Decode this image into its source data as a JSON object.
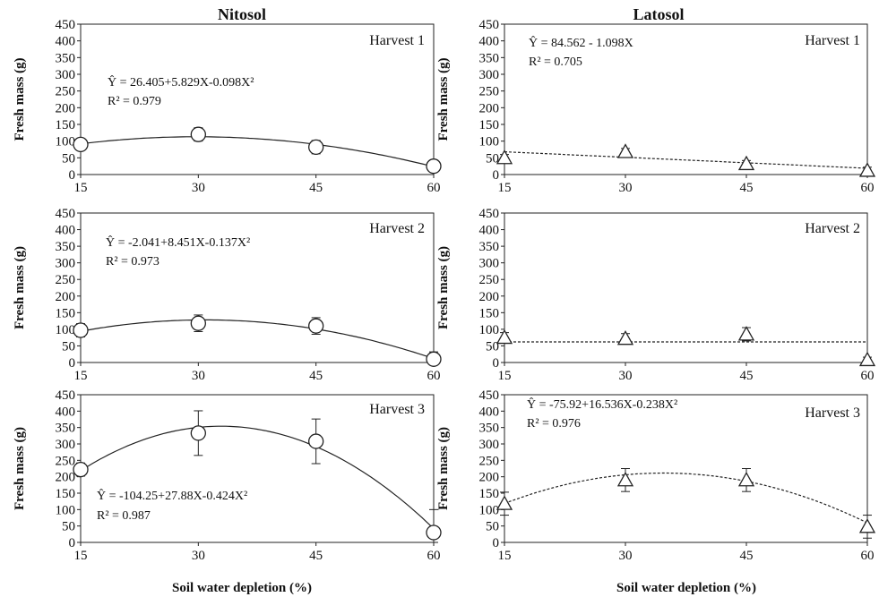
{
  "column_titles": [
    "Nitosol",
    "Latosol"
  ],
  "ylabel": "Fresh mass (g)",
  "xlabel": "Soil water depletion  (%)",
  "chart_data": [
    {
      "type": "scatter",
      "soil": "Nitosol",
      "harvest_label": "Harvest 1",
      "x": [
        15,
        30,
        45,
        60
      ],
      "y": [
        90,
        120,
        82,
        25
      ],
      "err": [
        12,
        20,
        20,
        10
      ],
      "marker": "circle",
      "line_style": "solid",
      "equation": "Ŷ = 26.405+5.829X-0.098X²",
      "r2": "R² =  0.979",
      "fit": [
        26.405,
        5.829,
        -0.098
      ],
      "ylim": [
        0,
        450
      ],
      "yticks": [
        0,
        50,
        100,
        150,
        200,
        250,
        300,
        350,
        400,
        450
      ],
      "xticks": [
        15,
        30,
        45,
        60
      ]
    },
    {
      "type": "scatter",
      "soil": "Latosol",
      "harvest_label": "Harvest 1",
      "x": [
        15,
        30,
        45,
        60
      ],
      "y": [
        50,
        68,
        32,
        12
      ],
      "err": [
        10,
        10,
        10,
        10
      ],
      "marker": "triangle",
      "line_style": "dashed",
      "equation": "Ŷ = 84.562  - 1.098X",
      "r2": "R² =  0.705",
      "fit": [
        84.562,
        -1.098,
        0
      ],
      "ylim": [
        0,
        450
      ],
      "yticks": [
        0,
        50,
        100,
        150,
        200,
        250,
        300,
        350,
        400,
        450
      ],
      "xticks": [
        15,
        30,
        45,
        60
      ]
    },
    {
      "type": "scatter",
      "soil": "Nitosol",
      "harvest_label": "Harvest 2",
      "x": [
        15,
        30,
        45,
        60
      ],
      "y": [
        97,
        118,
        110,
        10
      ],
      "err": [
        20,
        25,
        25,
        22
      ],
      "marker": "circle",
      "line_style": "solid",
      "equation": "Ŷ = -2.041+8.451X-0.137X²",
      "r2": "R² =  0.973",
      "fit": [
        -2.041,
        8.451,
        -0.137
      ],
      "ylim": [
        0,
        450
      ],
      "yticks": [
        0,
        50,
        100,
        150,
        200,
        250,
        300,
        350,
        400,
        450
      ],
      "xticks": [
        15,
        30,
        45,
        60
      ]
    },
    {
      "type": "scatter",
      "soil": "Latosol",
      "harvest_label": "Harvest 2",
      "x": [
        15,
        30,
        45,
        60
      ],
      "y": [
        75,
        72,
        85,
        8
      ],
      "err": [
        15,
        15,
        20,
        8
      ],
      "marker": "triangle",
      "line_style": "dashed",
      "equation": "",
      "r2": "",
      "fit": [
        62,
        0,
        0
      ],
      "ylim": [
        0,
        450
      ],
      "yticks": [
        0,
        50,
        100,
        150,
        200,
        250,
        300,
        350,
        400,
        450
      ],
      "xticks": [
        15,
        30,
        45,
        60
      ]
    },
    {
      "type": "scatter",
      "soil": "Nitosol",
      "harvest_label": "Harvest 3",
      "x": [
        15,
        30,
        45,
        60
      ],
      "y": [
        222,
        333,
        308,
        30
      ],
      "err": [
        20,
        68,
        68,
        70
      ],
      "marker": "circle",
      "line_style": "solid",
      "equation": "Ŷ = -104.25+27.88X-0.424X²",
      "r2": "R² =  0.987",
      "fit": [
        -104.25,
        27.88,
        -0.424
      ],
      "ylim": [
        0,
        450
      ],
      "yticks": [
        0,
        50,
        100,
        150,
        200,
        250,
        300,
        350,
        400,
        450
      ],
      "xticks": [
        15,
        30,
        45,
        60
      ]
    },
    {
      "type": "scatter",
      "soil": "Latosol",
      "harvest_label": "Harvest 3",
      "x": [
        15,
        30,
        45,
        60
      ],
      "y": [
        118,
        190,
        190,
        48
      ],
      "err": [
        35,
        35,
        35,
        35
      ],
      "marker": "triangle",
      "line_style": "dashed",
      "equation": "Ŷ = -75.92+16.536X-0.238X²",
      "r2": "R² =  0.976",
      "fit": [
        -75.92,
        16.536,
        -0.238
      ],
      "ylim": [
        0,
        450
      ],
      "yticks": [
        0,
        50,
        100,
        150,
        200,
        250,
        300,
        350,
        400,
        450
      ],
      "xticks": [
        15,
        30,
        45,
        60
      ]
    }
  ]
}
